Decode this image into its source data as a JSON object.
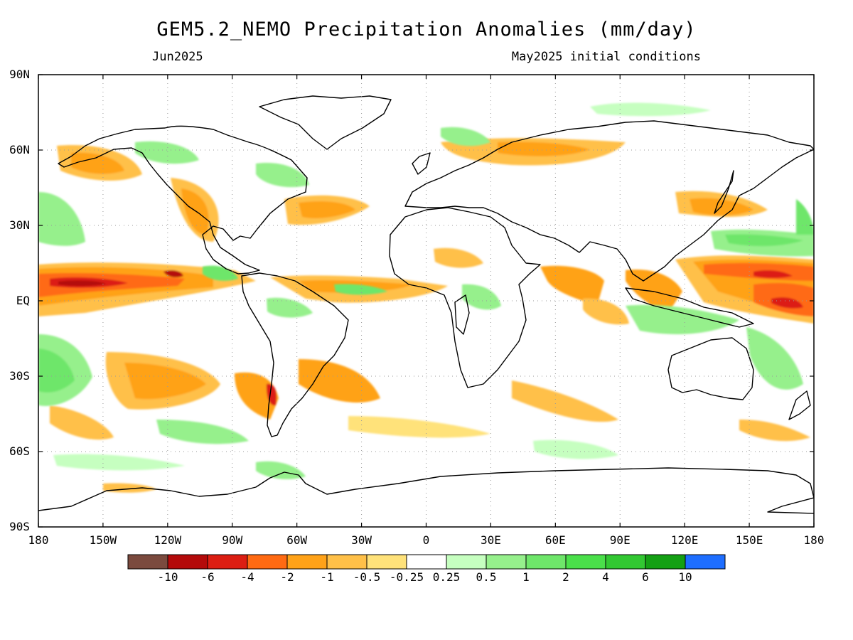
{
  "title": "GEM5.2_NEMO Precipitation Anomalies (mm/day)",
  "subtitle_left": "Jun2025",
  "subtitle_right": "May2025 initial conditions",
  "lat_labels": [
    "90N",
    "60N",
    "30N",
    "EQ",
    "30S",
    "60S",
    "90S"
  ],
  "lon_labels": [
    "180",
    "150W",
    "120W",
    "90W",
    "60W",
    "30W",
    "0",
    "30E",
    "60E",
    "90E",
    "120E",
    "150E",
    "180"
  ],
  "colorbar": {
    "colors": [
      "#7b4a3e",
      "#b40a0a",
      "#dc1e12",
      "#ff6a12",
      "#ffa218",
      "#ffc048",
      "#ffe27a",
      "#ffffff",
      "#c6ffc0",
      "#96f08c",
      "#6ee66a",
      "#4ae04a",
      "#32c832",
      "#14a014",
      "#1e6eff"
    ],
    "labels": [
      "-10",
      "-6",
      "-4",
      "-2",
      "-1",
      "-0.5",
      "-0.25",
      "0.25",
      "0.5",
      "1",
      "2",
      "4",
      "6",
      "10"
    ]
  }
}
